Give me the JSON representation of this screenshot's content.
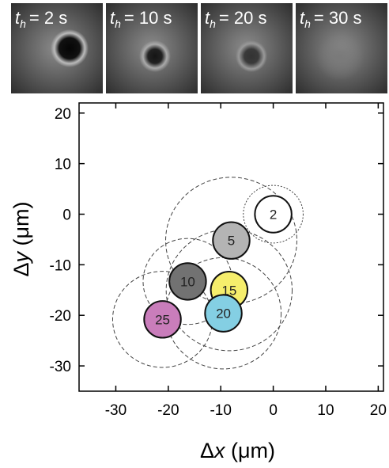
{
  "panels": [
    {
      "var": "t",
      "sub": "h",
      "text": "= 2 s"
    },
    {
      "var": "t",
      "sub": "h",
      "text": "= 10 s"
    },
    {
      "var": "t",
      "sub": "h",
      "text": "= 20 s"
    },
    {
      "var": "t",
      "sub": "h",
      "text": "= 30 s"
    }
  ],
  "chart_data": {
    "type": "scatter",
    "xlabel": {
      "prefix": "Δ",
      "var": "x",
      "unit": " (μm)"
    },
    "ylabel": {
      "prefix": "Δ",
      "var": "y",
      "unit": " (μm)"
    },
    "xlim": [
      -37,
      21
    ],
    "ylim": [
      -35,
      22
    ],
    "xticks": [
      -30,
      -20,
      -10,
      0,
      10,
      20
    ],
    "yticks": [
      -30,
      -20,
      -10,
      0,
      10,
      20
    ],
    "labels": [
      2,
      5,
      10,
      15,
      20,
      25
    ],
    "x": [
      0,
      -8,
      -16.3,
      -8.4,
      -9.5,
      -21.1
    ],
    "y": [
      0,
      -5.2,
      -13.3,
      -15,
      -19.6,
      -20.8
    ],
    "radius": [
      5.7,
      12.5,
      8.5,
      12,
      11,
      9.5
    ],
    "colors": [
      "#ffffff",
      "#b4b4b4",
      "#727272",
      "#f6ee6c",
      "#84cfe3",
      "#c97dbb"
    ]
  }
}
